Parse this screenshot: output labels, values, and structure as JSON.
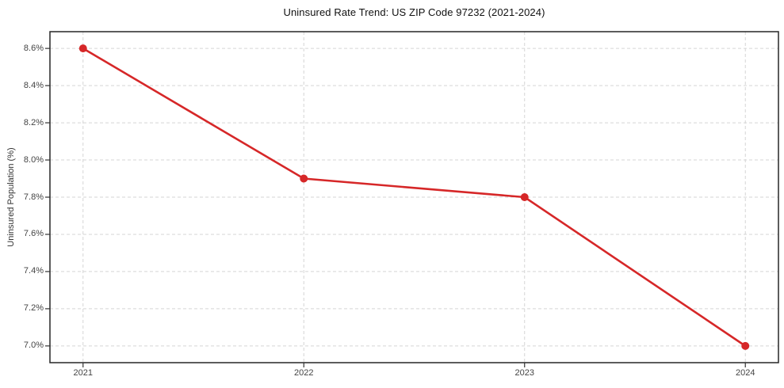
{
  "chart_data": {
    "type": "line",
    "title": "Uninsured Rate Trend: US ZIP Code 97232 (2021-2024)",
    "xlabel": "",
    "ylabel": "Uninsured Population (%)",
    "x": [
      2021,
      2022,
      2023,
      2024
    ],
    "xtick_labels": [
      "2021",
      "2022",
      "2023",
      "2024"
    ],
    "series": [
      {
        "name": "Uninsured Population (%)",
        "values": [
          8.6,
          7.9,
          7.8,
          7.0
        ]
      }
    ],
    "yticks": [
      7.0,
      7.2,
      7.4,
      7.6,
      7.8,
      8.0,
      8.2,
      8.4,
      8.6
    ],
    "ytick_labels": [
      "7.0%",
      "7.2%",
      "7.4%",
      "7.6%",
      "7.8%",
      "8.0%",
      "8.2%",
      "8.4%",
      "8.6%"
    ],
    "xlim": [
      2020.85,
      2024.15
    ],
    "ylim": [
      6.91,
      8.69
    ],
    "grid": true,
    "grid_style": "dashed",
    "legend_position": "none",
    "marker": "circle",
    "colors": {
      "line": "#d62728",
      "marker": "#d62728",
      "grid": "#d5d5d5",
      "axis": "#262626",
      "tick_mark": "#333333",
      "tick_label": "#444444",
      "title": "#111111",
      "background": "#ffffff"
    }
  }
}
